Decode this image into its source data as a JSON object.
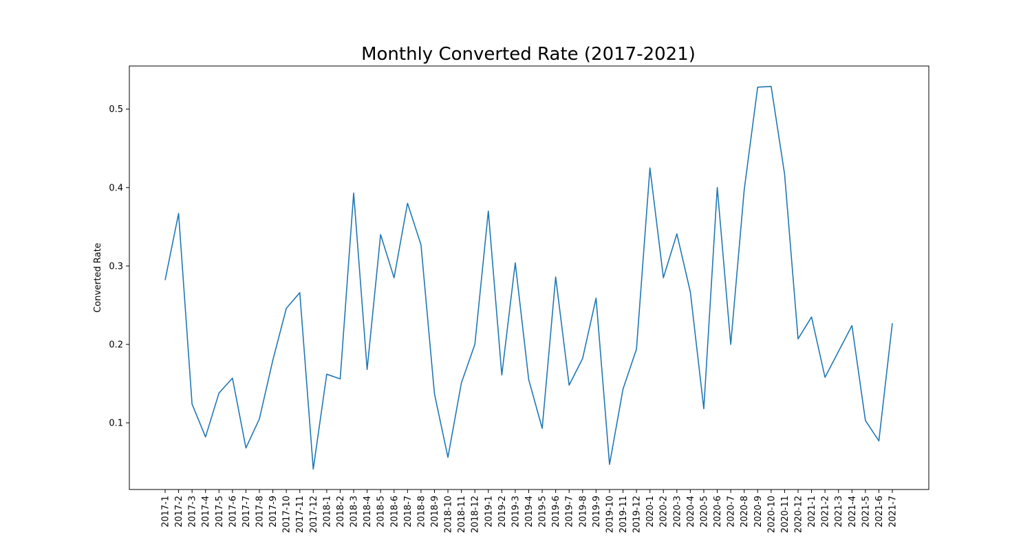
{
  "chart_data": {
    "type": "line",
    "title": "Monthly Converted Rate (2017-2021)",
    "xlabel": "",
    "ylabel": "Converted Rate",
    "ylim": [
      0.015,
      0.555
    ],
    "yticks": [
      0.1,
      0.2,
      0.3,
      0.4,
      0.5
    ],
    "ytick_labels": [
      "0.1",
      "0.2",
      "0.3",
      "0.4",
      "0.5"
    ],
    "grid": false,
    "line_color": "#1f77b4",
    "categories": [
      "2017-1",
      "2017-2",
      "2017-3",
      "2017-4",
      "2017-5",
      "2017-6",
      "2017-7",
      "2017-8",
      "2017-9",
      "2017-10",
      "2017-11",
      "2017-12",
      "2018-1",
      "2018-2",
      "2018-3",
      "2018-4",
      "2018-5",
      "2018-6",
      "2018-7",
      "2018-8",
      "2018-9",
      "2018-10",
      "2018-11",
      "2018-12",
      "2019-1",
      "2019-2",
      "2019-3",
      "2019-4",
      "2019-5",
      "2019-6",
      "2019-7",
      "2019-8",
      "2019-9",
      "2019-10",
      "2019-11",
      "2019-12",
      "2020-1",
      "2020-2",
      "2020-3",
      "2020-4",
      "2020-5",
      "2020-6",
      "2020-7",
      "2020-8",
      "2020-9",
      "2020-10",
      "2020-11",
      "2020-12",
      "2021-1",
      "2021-2",
      "2021-3",
      "2021-4",
      "2021-5",
      "2021-6",
      "2021-7"
    ],
    "values": [
      0.282,
      0.367,
      0.124,
      0.082,
      0.138,
      0.157,
      0.068,
      0.105,
      0.18,
      0.246,
      0.266,
      0.041,
      0.162,
      0.156,
      0.393,
      0.168,
      0.34,
      0.285,
      0.38,
      0.327,
      0.137,
      0.056,
      0.151,
      0.2,
      0.37,
      0.161,
      0.304,
      0.155,
      0.093,
      0.286,
      0.148,
      0.182,
      0.259,
      0.047,
      0.143,
      0.194,
      0.425,
      0.285,
      0.341,
      0.267,
      0.118,
      0.4,
      0.2,
      0.397,
      0.528,
      0.529,
      0.417,
      0.207,
      0.235,
      0.158,
      0.191,
      0.224,
      0.103,
      0.077,
      0.227
    ]
  }
}
